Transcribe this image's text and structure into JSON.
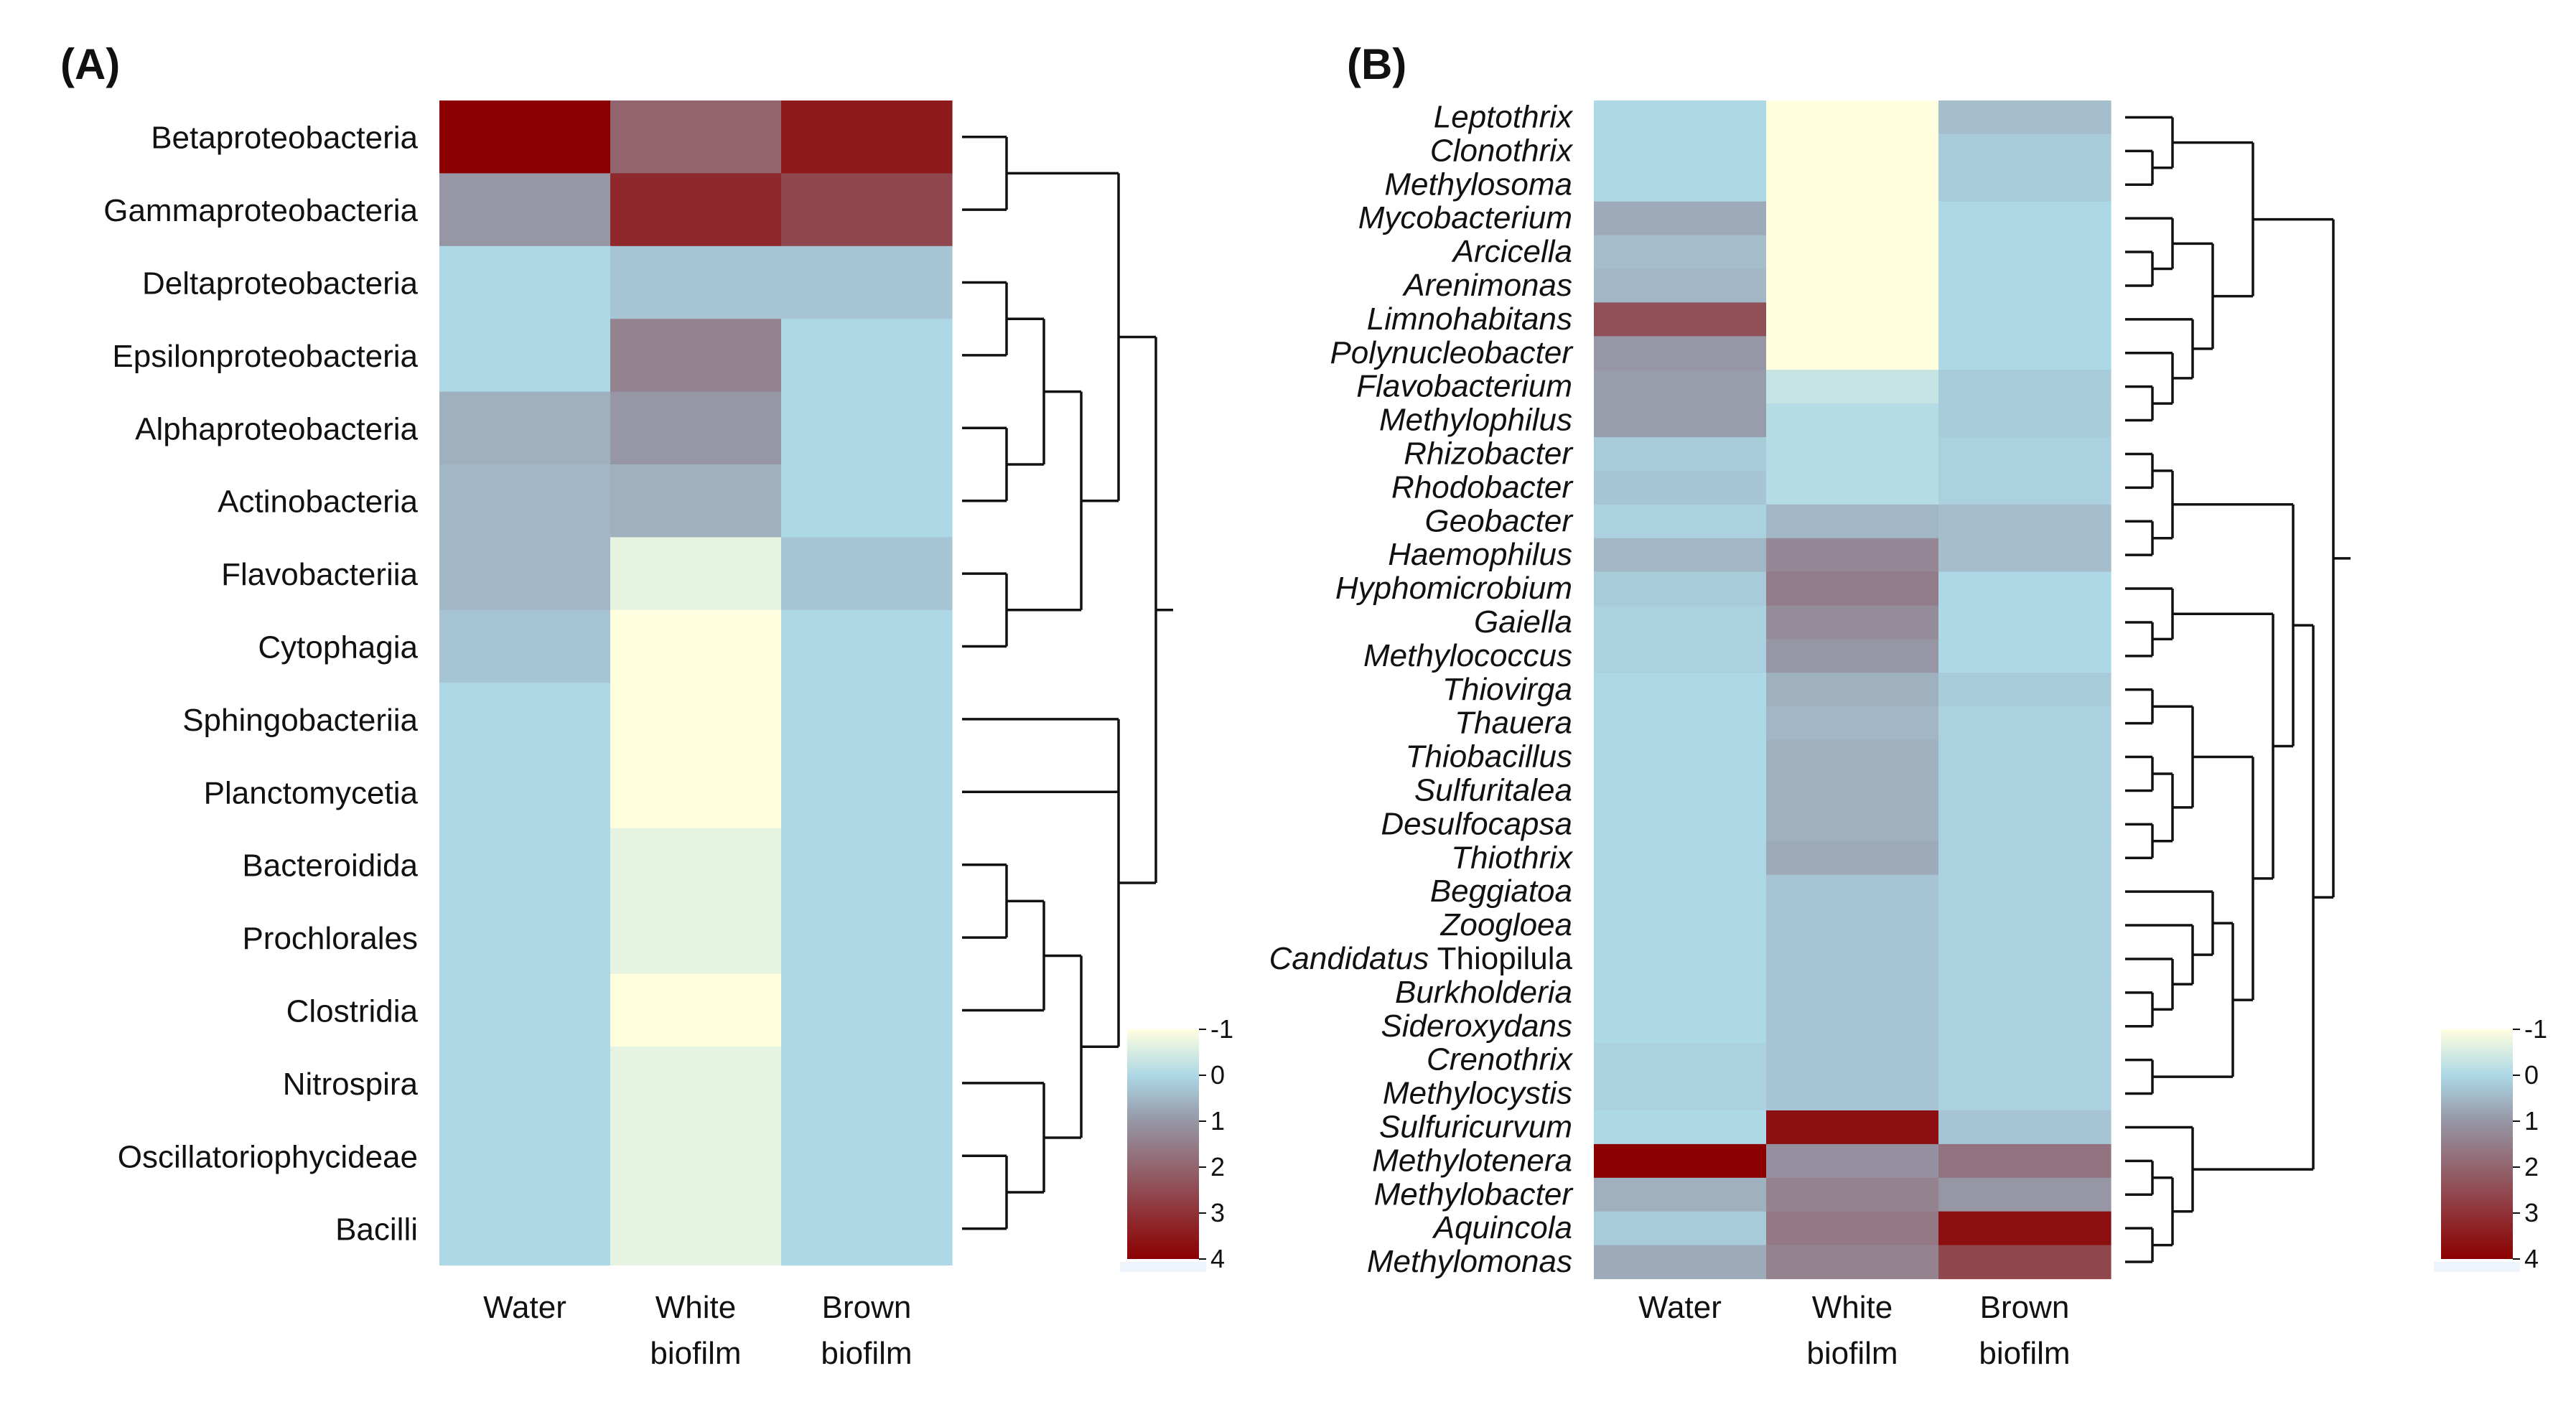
{
  "chart_data": [
    {
      "type": "heatmap",
      "panel": "(A)",
      "columns": [
        "Water",
        "White biofilm",
        "Brown biofilm"
      ],
      "column_labels": [
        [
          "Water"
        ],
        [
          "White",
          "biofilm"
        ],
        [
          "Brown",
          "biofilm"
        ]
      ],
      "rows": [
        {
          "label": "Betaproteobacteria",
          "values": [
            4.0,
            2.0,
            3.5
          ]
        },
        {
          "label": "Gammaproteobacteria",
          "values": [
            1.0,
            3.2,
            2.6
          ]
        },
        {
          "label": "Deltaproteobacteria",
          "values": [
            0.0,
            0.3,
            0.3
          ]
        },
        {
          "label": "Epsilonproteobacteria",
          "values": [
            0.0,
            1.4,
            0.0
          ]
        },
        {
          "label": "Alphaproteobacteria",
          "values": [
            0.6,
            1.0,
            0.0
          ]
        },
        {
          "label": "Actinobacteria",
          "values": [
            0.5,
            0.6,
            0.0
          ]
        },
        {
          "label": "Flavobacteriia",
          "values": [
            0.5,
            -0.7,
            0.3
          ]
        },
        {
          "label": "Cytophagia",
          "values": [
            0.3,
            -1.0,
            0.0
          ]
        },
        {
          "label": "Sphingobacteriia",
          "values": [
            0.0,
            -1.0,
            0.0
          ]
        },
        {
          "label": "Planctomycetia",
          "values": [
            0.0,
            -1.0,
            0.0
          ]
        },
        {
          "label": "Bacteroidida",
          "values": [
            0.0,
            -0.7,
            0.0
          ]
        },
        {
          "label": "Prochlorales",
          "values": [
            0.0,
            -0.7,
            0.0
          ]
        },
        {
          "label": "Clostridia",
          "values": [
            0.0,
            -1.0,
            0.0
          ]
        },
        {
          "label": "Nitrospira",
          "values": [
            0.0,
            -0.7,
            0.0
          ]
        },
        {
          "label": "Oscillatoriophycideae",
          "values": [
            0.0,
            -0.7,
            0.0
          ]
        },
        {
          "label": "Bacilli",
          "values": [
            0.0,
            -0.7,
            0.0
          ]
        }
      ],
      "color_scale": {
        "min": -1,
        "max": 4,
        "ticks": [
          "-1",
          "0",
          "1",
          "2",
          "3",
          "4"
        ],
        "low_color": "#fffedf",
        "mid_color": "#add8e6",
        "high_color": "#8b0000"
      }
    },
    {
      "type": "heatmap",
      "panel": "(B)",
      "columns": [
        "Water",
        "White biofilm",
        "Brown biofilm"
      ],
      "column_labels": [
        [
          "Water"
        ],
        [
          "White",
          "biofilm"
        ],
        [
          "Brown",
          "biofilm"
        ]
      ],
      "rows": [
        {
          "label": "Leptothrix",
          "values": [
            0.0,
            -1.0,
            0.4
          ]
        },
        {
          "label": "Clonothrix",
          "values": [
            0.0,
            -1.0,
            0.2
          ]
        },
        {
          "label": "Methylosoma",
          "values": [
            0.0,
            -1.0,
            0.2
          ]
        },
        {
          "label": "Mycobacterium",
          "values": [
            0.7,
            -1.0,
            0.0
          ]
        },
        {
          "label": "Arcicella",
          "values": [
            0.4,
            -1.0,
            0.0
          ]
        },
        {
          "label": "Arenimonas",
          "values": [
            0.5,
            -1.0,
            0.0
          ]
        },
        {
          "label": "Limnohabitans",
          "values": [
            2.4,
            -1.0,
            0.0
          ]
        },
        {
          "label": "Polynucleobacter",
          "values": [
            1.0,
            -1.0,
            0.0
          ]
        },
        {
          "label": "Flavobacterium",
          "values": [
            0.9,
            -0.3,
            0.2
          ]
        },
        {
          "label": "Methylophilus",
          "values": [
            0.9,
            -0.1,
            0.2
          ]
        },
        {
          "label": "Rhizobacter",
          "values": [
            0.2,
            -0.1,
            0.1
          ]
        },
        {
          "label": "Rhodobacter",
          "values": [
            0.3,
            -0.1,
            0.1
          ]
        },
        {
          "label": "Geobacter",
          "values": [
            0.1,
            0.5,
            0.4
          ]
        },
        {
          "label": "Haemophilus",
          "values": [
            0.5,
            1.3,
            0.4
          ]
        },
        {
          "label": "Hyphomicrobium",
          "values": [
            0.2,
            1.5,
            0.0
          ]
        },
        {
          "label": "Gaiella",
          "values": [
            0.1,
            1.2,
            0.0
          ]
        },
        {
          "label": "Methylococcus",
          "values": [
            0.1,
            1.0,
            0.0
          ]
        },
        {
          "label": "Thiovirga",
          "values": [
            0.0,
            0.6,
            0.2
          ]
        },
        {
          "label": "Thauera",
          "values": [
            0.0,
            0.5,
            0.1
          ]
        },
        {
          "label": "Thiobacillus",
          "values": [
            0.0,
            0.6,
            0.1
          ]
        },
        {
          "label": "Sulfuritalea",
          "values": [
            0.0,
            0.6,
            0.1
          ]
        },
        {
          "label": "Desulfocapsa",
          "values": [
            0.0,
            0.6,
            0.1
          ]
        },
        {
          "label": "Thiothrix",
          "values": [
            0.0,
            0.7,
            0.1
          ]
        },
        {
          "label": "Beggiatoa",
          "values": [
            0.0,
            0.3,
            0.1
          ]
        },
        {
          "label": "Zoogloea",
          "values": [
            0.0,
            0.3,
            0.1
          ]
        },
        {
          "label": "Candidatus Thiopilula",
          "label_parts": [
            {
              "text": "Candidatus",
              "italic": true
            },
            {
              "text": " Thiopilula",
              "italic": false
            }
          ],
          "values": [
            0.0,
            0.3,
            0.1
          ]
        },
        {
          "label": "Burkholderia",
          "values": [
            0.0,
            0.3,
            0.1
          ]
        },
        {
          "label": "Sideroxydans",
          "values": [
            0.0,
            0.3,
            0.1
          ]
        },
        {
          "label": "Crenothrix",
          "values": [
            0.1,
            0.3,
            0.1
          ]
        },
        {
          "label": "Methylocystis",
          "values": [
            0.1,
            0.3,
            0.1
          ]
        },
        {
          "label": "Sulfuricurvum",
          "values": [
            0.0,
            3.7,
            0.3
          ]
        },
        {
          "label": "Methylotenera",
          "values": [
            4.0,
            1.1,
            1.7
          ]
        },
        {
          "label": "Methylobacter",
          "values": [
            0.6,
            1.4,
            1.0
          ]
        },
        {
          "label": "Aquincola",
          "values": [
            0.2,
            1.6,
            3.7
          ]
        },
        {
          "label": "Methylomonas",
          "values": [
            0.7,
            1.4,
            2.6
          ]
        }
      ],
      "color_scale": {
        "min": -1,
        "max": 4,
        "ticks": [
          "-1",
          "0",
          "1",
          "2",
          "3",
          "4"
        ],
        "low_color": "#fffedf",
        "mid_color": "#add8e6",
        "high_color": "#8b0000"
      }
    }
  ]
}
